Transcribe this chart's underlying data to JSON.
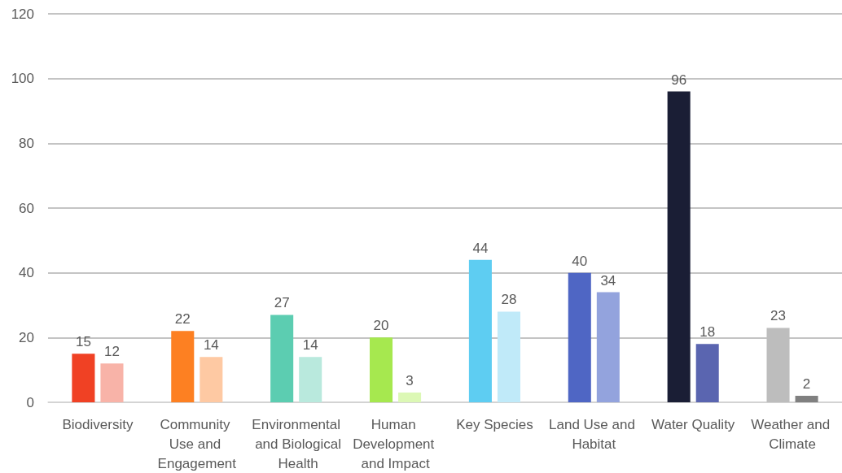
{
  "chart_data": {
    "type": "bar",
    "categories": [
      "Biodiversity",
      "Community Use and Engagement",
      "Environmental and Biological Health",
      "Human Development and Impact",
      "Key Species",
      "Land Use and Habitat",
      "Water Quality",
      "Weather and Climate"
    ],
    "series": [
      {
        "values": [
          15,
          22,
          27,
          20,
          44,
          40,
          96,
          23
        ],
        "colors": [
          "#f04124",
          "#fd8022",
          "#5ccdb1",
          "#a6e84f",
          "#5ecdf2",
          "#4f66c4",
          "#1a1e35",
          "#bdbdbd"
        ]
      },
      {
        "values": [
          12,
          14,
          14,
          3,
          28,
          34,
          18,
          2
        ],
        "colors": [
          "#f8b3a8",
          "#fec9a3",
          "#b9e9dd",
          "#dcf8b5",
          "#c0eaf9",
          "#93a3dd",
          "#5a65b0",
          "#808080"
        ]
      }
    ],
    "ylim": [
      0,
      120
    ],
    "yticks": [
      0,
      20,
      40,
      60,
      80,
      100,
      120
    ],
    "grid": "y",
    "data_labels": true
  }
}
